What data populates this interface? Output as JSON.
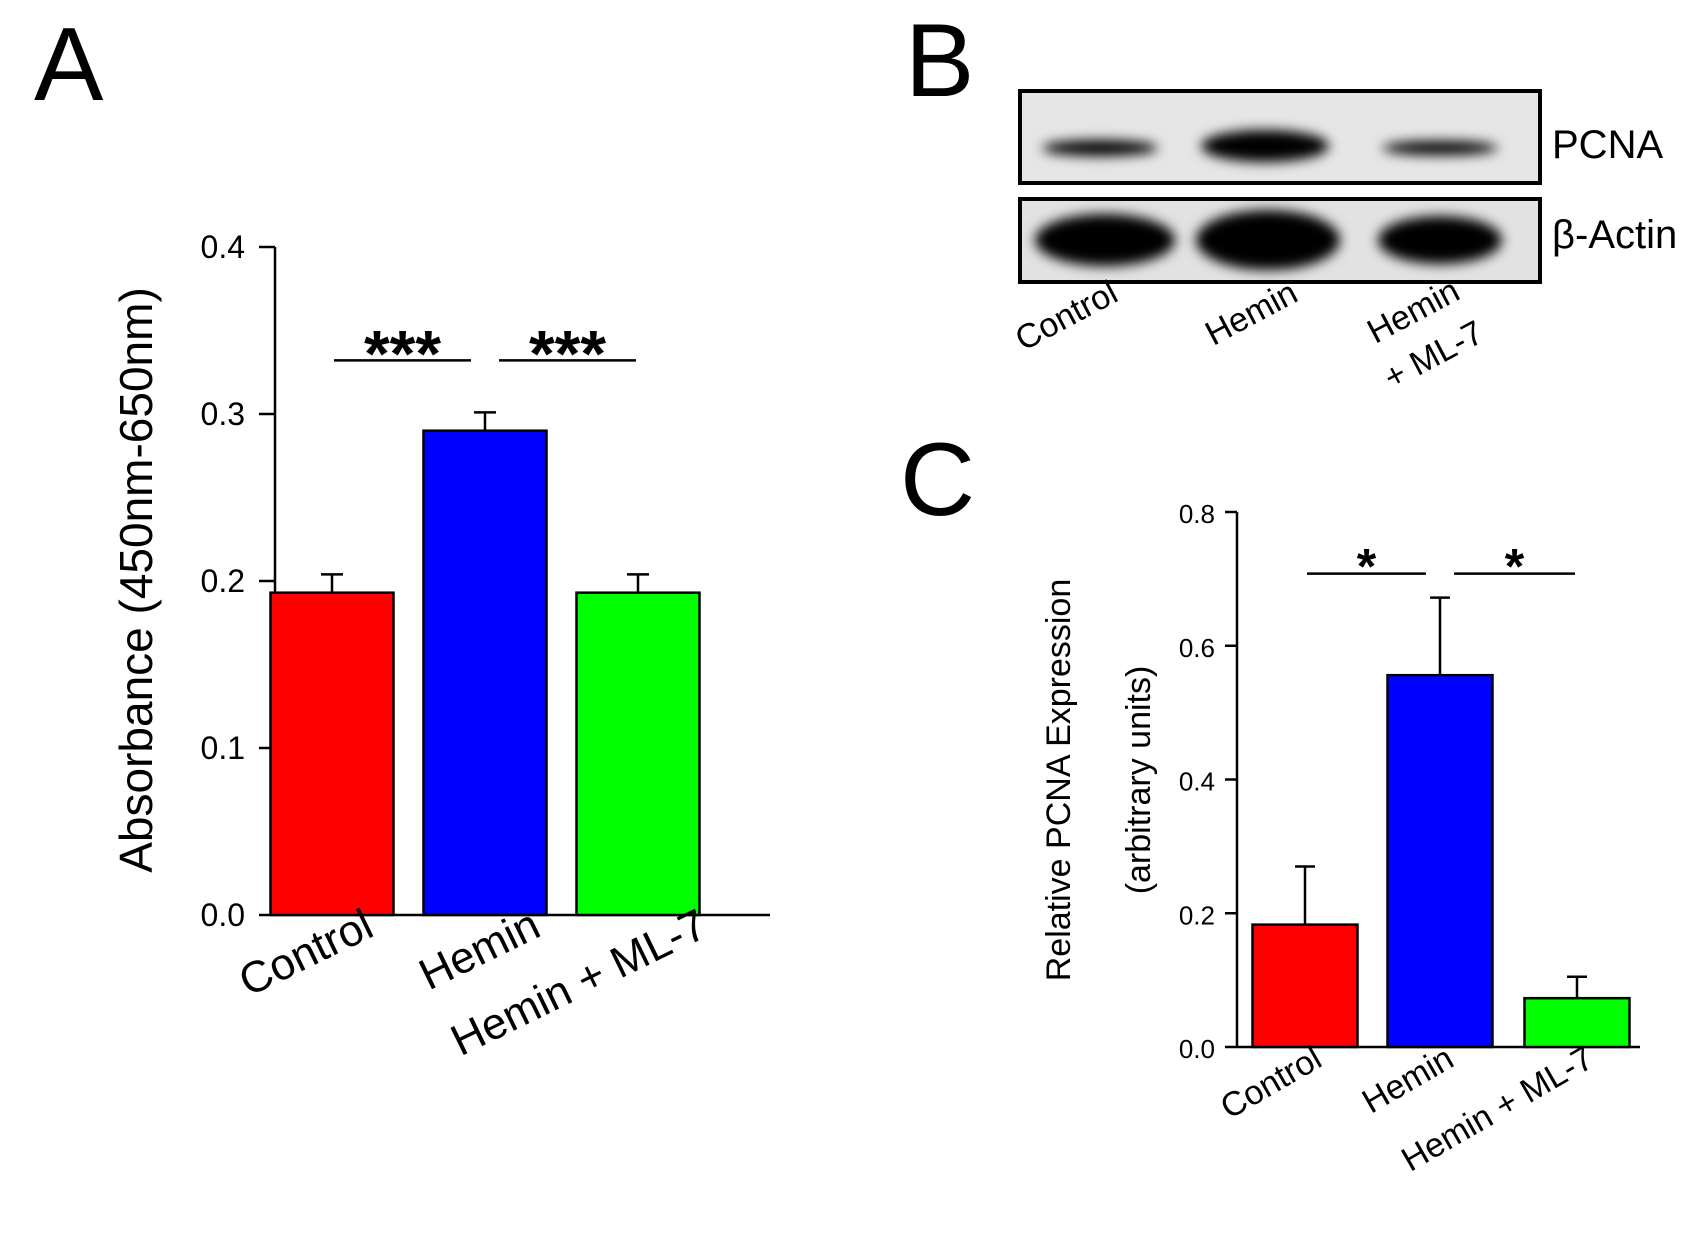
{
  "panels": {
    "a": {
      "letter": "A"
    },
    "b": {
      "letter": "B",
      "bands": [
        {
          "label": "PCNA",
          "intensity": [
            0.18,
            1.0,
            0.08
          ]
        },
        {
          "label": "β-Actin",
          "intensity": [
            0.95,
            1.0,
            0.9
          ]
        }
      ],
      "lanes": [
        "Control",
        "Hemin",
        "Hemin",
        "+ ML-7"
      ]
    },
    "c": {
      "letter": "C"
    }
  },
  "chart_data": [
    {
      "panel": "A",
      "type": "bar",
      "categories": [
        "Control",
        "Hemin",
        "Hemin + ML-7"
      ],
      "values": [
        0.193,
        0.29,
        0.193
      ],
      "errors": [
        0.011,
        0.011,
        0.011
      ],
      "colors": [
        "#ff0000",
        "#0000ff",
        "#00ff00"
      ],
      "ylabel": "Absorbance (450nm-650nm)",
      "ylim": [
        0,
        0.4
      ],
      "yticks": [
        "0.0",
        "0.1",
        "0.2",
        "0.3",
        "0.4"
      ],
      "significance": [
        {
          "from": 0,
          "to": 1,
          "label": "***"
        },
        {
          "from": 1,
          "to": 2,
          "label": "***"
        }
      ]
    },
    {
      "panel": "C",
      "type": "bar",
      "categories": [
        "Control",
        "Hemin",
        "Hemin + ML-7"
      ],
      "values": [
        0.183,
        0.556,
        0.073
      ],
      "errors": [
        0.087,
        0.116,
        0.032
      ],
      "colors": [
        "#ff0000",
        "#0000ff",
        "#00ff00"
      ],
      "ylabel": [
        "Relative PCNA Expression",
        "(arbitrary units)"
      ],
      "ylim": [
        0,
        0.8
      ],
      "yticks": [
        "0.0",
        "0.2",
        "0.4",
        "0.6",
        "0.8"
      ],
      "significance": [
        {
          "from": 0,
          "to": 1,
          "label": "*"
        },
        {
          "from": 1,
          "to": 2,
          "label": "*"
        }
      ]
    }
  ]
}
